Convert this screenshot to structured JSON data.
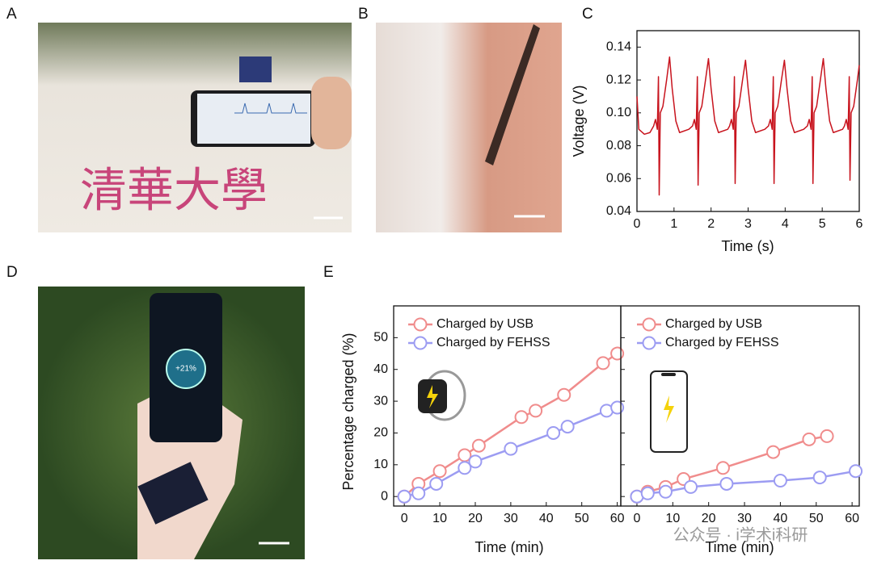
{
  "panel_labels": [
    "A",
    "B",
    "C",
    "D",
    "E"
  ],
  "photo_texts": {
    "shirt": "清華大學",
    "phone": "+21%"
  },
  "watermark": "公众号 · i学术i科研",
  "chart_data": [
    {
      "type": "line",
      "xlabel": "Time (s)",
      "ylabel": "Voltage (V)",
      "xlim": [
        0,
        6
      ],
      "ylim": [
        0.04,
        0.15
      ],
      "xticks": [
        0,
        1,
        2,
        3,
        4,
        5,
        6
      ],
      "yticks": [
        0.04,
        0.06,
        0.08,
        {
          "value": 0.1,
          "label": "0.10"
        },
        0.12,
        0.14
      ],
      "series": [
        {
          "color": "#c8141e",
          "x": [
            0,
            0.05,
            0.2,
            0.35,
            0.45,
            0.5,
            0.55,
            0.58,
            0.6,
            0.63,
            0.7,
            0.8,
            0.88,
            0.95,
            1.05,
            1.15,
            1.4,
            1.5,
            1.55,
            1.6,
            1.63,
            1.65,
            1.68,
            1.75,
            1.85,
            1.93,
            2.0,
            2.1,
            2.2,
            2.45,
            2.5,
            2.55,
            2.6,
            2.63,
            2.65,
            2.68,
            2.75,
            2.85,
            2.93,
            3.0,
            3.1,
            3.2,
            3.45,
            3.55,
            3.6,
            3.65,
            3.68,
            3.7,
            3.73,
            3.8,
            3.9,
            3.98,
            4.05,
            4.15,
            4.25,
            4.5,
            4.6,
            4.65,
            4.7,
            4.73,
            4.75,
            4.78,
            4.85,
            4.95,
            5.03,
            5.1,
            5.2,
            5.3,
            5.55,
            5.6,
            5.65,
            5.7,
            5.73,
            5.75,
            5.78,
            5.85,
            5.95,
            6.0
          ],
          "values": [
            0.11,
            0.09,
            0.087,
            0.088,
            0.092,
            0.096,
            0.09,
            0.122,
            0.05,
            0.1,
            0.104,
            0.12,
            0.134,
            0.115,
            0.095,
            0.088,
            0.09,
            0.092,
            0.096,
            0.09,
            0.122,
            0.056,
            0.1,
            0.104,
            0.12,
            0.133,
            0.115,
            0.095,
            0.088,
            0.09,
            0.092,
            0.096,
            0.09,
            0.122,
            0.057,
            0.1,
            0.104,
            0.12,
            0.132,
            0.115,
            0.095,
            0.088,
            0.09,
            0.092,
            0.096,
            0.09,
            0.122,
            0.057,
            0.1,
            0.104,
            0.12,
            0.132,
            0.115,
            0.095,
            0.088,
            0.09,
            0.092,
            0.096,
            0.09,
            0.122,
            0.057,
            0.1,
            0.104,
            0.12,
            0.133,
            0.115,
            0.095,
            0.088,
            0.09,
            0.092,
            0.096,
            0.09,
            0.122,
            0.059,
            0.1,
            0.104,
            0.12,
            0.129
          ]
        }
      ]
    },
    {
      "type": "line",
      "markers": true,
      "legend": "upper left",
      "xlabel": "Time (min)",
      "ylabel": "Percentage charged (%)",
      "xlim": [
        -3,
        61
      ],
      "ylim": [
        -3,
        60
      ],
      "xticks": [
        0,
        10,
        20,
        30,
        40,
        50,
        60
      ],
      "yticks": [
        0,
        10,
        20,
        30,
        40,
        50
      ],
      "series": [
        {
          "name": "Charged by USB",
          "color": "#f08c8c",
          "x": [
            0,
            4,
            10,
            17,
            21,
            33,
            37,
            45,
            56,
            60
          ],
          "values": [
            0,
            4,
            8,
            13,
            16,
            25,
            27,
            32,
            42,
            45
          ]
        },
        {
          "name": "Charged by FEHSS",
          "color": "#9c9cf2",
          "x": [
            0,
            4,
            9,
            17,
            20,
            30,
            42,
            46,
            57,
            60
          ],
          "values": [
            0,
            1,
            4,
            9,
            11,
            15,
            20,
            22,
            27,
            28
          ]
        }
      ]
    },
    {
      "type": "line",
      "markers": true,
      "legend": "upper left",
      "xlabel": "Time (min)",
      "xlim": [
        -4.5,
        62
      ],
      "ylim": [
        -3,
        60
      ],
      "xticks": [
        0,
        10,
        20,
        30,
        40,
        50,
        60
      ],
      "yticks": [
        0,
        10,
        20,
        30,
        40,
        50
      ],
      "series": [
        {
          "name": "Charged by USB",
          "color": "#f08c8c",
          "x": [
            0,
            3,
            8,
            13,
            24,
            38,
            48,
            53
          ],
          "values": [
            0,
            1.5,
            3,
            5.5,
            9,
            14,
            18,
            19
          ]
        },
        {
          "name": "Charged by FEHSS",
          "color": "#9c9cf2",
          "x": [
            0,
            3,
            8,
            15,
            25,
            40,
            51,
            61
          ],
          "values": [
            0,
            1,
            1.5,
            3,
            4,
            5,
            6,
            8
          ]
        }
      ]
    }
  ]
}
